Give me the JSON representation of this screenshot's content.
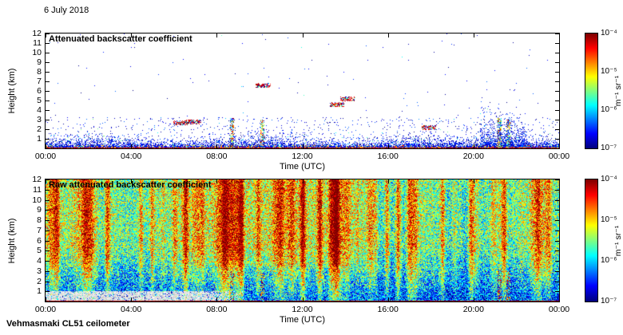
{
  "date_label": "6 July 2018",
  "station_label": "Vehmasmaki CL51 ceilometer",
  "colorbar": {
    "unit_label": "m⁻¹ sr⁻¹",
    "tick_labels": [
      "10⁻⁴",
      "10⁻⁵",
      "10⁻⁶",
      "10⁻⁷"
    ],
    "scale": "log",
    "range": [
      1e-07,
      0.0001
    ],
    "colormap": "jet"
  },
  "chart_data": [
    {
      "type": "heatmap",
      "title": "Attenuated backscatter coefficient",
      "xlabel": "Time (UTC)",
      "ylabel": "Height (km)",
      "x_tick_labels": [
        "00:00",
        "04:00",
        "08:00",
        "12:00",
        "16:00",
        "20:00",
        "00:00"
      ],
      "x_tick_hours": [
        0,
        4,
        8,
        12,
        16,
        20,
        24
      ],
      "x_range_hours": [
        0,
        24
      ],
      "y_tick_values": [
        1,
        2,
        3,
        4,
        5,
        6,
        7,
        8,
        9,
        10,
        11,
        12
      ],
      "y_range_km": [
        0,
        12
      ],
      "value_scale": "log10",
      "value_range_log10": [
        -7,
        -4
      ],
      "units": "m⁻¹ sr⁻¹",
      "background": "white below noise threshold",
      "features": {
        "aerosol_layer": {
          "height_km": [
            0,
            1.8
          ],
          "note": "blue speckle aerosol/noise layer densest below 1 km, deepens to ~3 km around 21:00-22:00"
        },
        "surface_returns": {
          "height_km": [
            0,
            0.2
          ],
          "note": "strong multicolour (orange/red/green) returns at the surface all day"
        },
        "clouds": [
          {
            "time_h": 6.3,
            "height_km": 2.7
          },
          {
            "time_h": 6.9,
            "height_km": 2.8
          },
          {
            "time_h": 10.15,
            "height_km": 6.6
          },
          {
            "time_h": 13.6,
            "height_km": 4.6
          },
          {
            "time_h": 14.1,
            "height_km": 5.2
          },
          {
            "time_h": 17.9,
            "height_km": 2.2
          }
        ],
        "precip_columns": [
          {
            "time_h": 8.7,
            "top_km": 3.2
          },
          {
            "time_h": 10.1,
            "top_km": 3.0
          },
          {
            "time_h": 21.2,
            "top_km": 3.2
          },
          {
            "time_h": 21.6,
            "top_km": 3.0
          }
        ]
      }
    },
    {
      "type": "heatmap",
      "title": "Raw attenuated backscatter coefficient",
      "xlabel": "Time (UTC)",
      "ylabel": "Height (km)",
      "x_tick_labels": [
        "00:00",
        "04:00",
        "08:00",
        "12:00",
        "16:00",
        "20:00",
        "00:00"
      ],
      "x_tick_hours": [
        0,
        4,
        8,
        12,
        16,
        20,
        24
      ],
      "x_range_hours": [
        0,
        24
      ],
      "y_tick_values": [
        1,
        2,
        3,
        4,
        5,
        6,
        7,
        8,
        9,
        10,
        11,
        12
      ],
      "y_range_km": [
        0,
        12
      ],
      "value_scale": "log10",
      "value_range_log10": [
        -7,
        -4
      ],
      "units": "m⁻¹ sr⁻¹",
      "features": {
        "noise_field": {
          "note": "dense speckle over full height range; green/orange dominated above ~4 km, blue dominated below"
        },
        "orange_streak_period": {
          "time_h": [
            7,
            14.5
          ],
          "note": "strongest vertical orange/red streaks through whole column"
        },
        "gray_band": {
          "time_h": [
            0,
            9.5
          ],
          "height_km": [
            0.15,
            1.05
          ],
          "note": "light grey saturated band near the surface in the first hours"
        },
        "surface_returns": {
          "height_km": [
            0,
            0.15
          ],
          "note": "dark red surface return line all day"
        },
        "precip_columns": [
          {
            "time_h": 8.7,
            "top_km": 3.0
          },
          {
            "time_h": 10.1,
            "top_km": 2.8
          },
          {
            "time_h": 21.2,
            "top_km": 3.2
          },
          {
            "time_h": 21.6,
            "top_km": 3.0
          }
        ]
      }
    }
  ]
}
